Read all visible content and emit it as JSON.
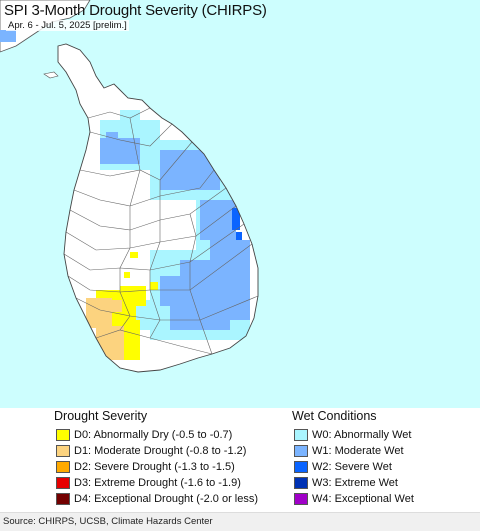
{
  "map": {
    "title": "SPI 3-Month Drought Severity (CHIRPS)",
    "subtitle": "Apr. 6 - Jul. 5, 2025 [prelim.]",
    "region": "Sri Lanka",
    "ocean_color": "#cdfefe",
    "land_color": "#ffffff",
    "border_color": "#555555"
  },
  "legend": {
    "drought": {
      "heading": "Drought Severity",
      "items": [
        {
          "label": "D0: Abnormally Dry (-0.5 to -0.7)",
          "color": "#ffff00"
        },
        {
          "label": "D1: Moderate Drought (-0.8 to -1.2)",
          "color": "#fcd37f"
        },
        {
          "label": "D2: Severe Drought (-1.3 to -1.5)",
          "color": "#ffaa00"
        },
        {
          "label": "D3: Extreme Drought (-1.6 to -1.9)",
          "color": "#e60000"
        },
        {
          "label": "D4: Exceptional Drought (-2.0 or less)",
          "color": "#730000"
        }
      ]
    },
    "wet": {
      "heading": "Wet Conditions",
      "items": [
        {
          "label": "W0: Abnormally Wet",
          "color": "#aaf5ff"
        },
        {
          "label": "W1: Moderate Wet",
          "color": "#7bb4ff"
        },
        {
          "label": "W2: Severe Wet",
          "color": "#0a64ff"
        },
        {
          "label": "W3: Extreme Wet",
          "color": "#0032b4"
        },
        {
          "label": "W4: Exceptional Wet",
          "color": "#a000c8"
        }
      ]
    }
  },
  "footer": {
    "source": "Source: CHIRPS, UCSB, Climate Hazards Center"
  }
}
